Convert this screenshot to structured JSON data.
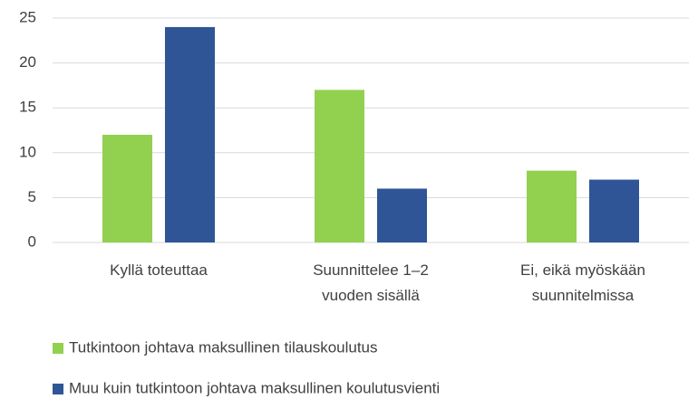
{
  "chart_data": {
    "type": "bar",
    "categories": [
      "Kyllä toteuttaa",
      "Suunnittelee 1–2\nvuoden sisällä",
      "Ei, eikä myöskään\nsuunnitelmissa"
    ],
    "series": [
      {
        "name": "Tutkintoon johtava maksullinen tilauskoulutus",
        "color": "#92d050",
        "values": [
          12,
          17,
          8
        ]
      },
      {
        "name": "Muu kuin tutkintoon johtava maksullinen koulutusvienti",
        "color": "#2f5597",
        "values": [
          24,
          6,
          7
        ]
      }
    ],
    "ylim": [
      0,
      25
    ],
    "yticks": [
      0,
      5,
      10,
      15,
      20,
      25
    ],
    "grid": true,
    "legend": "bottom"
  }
}
